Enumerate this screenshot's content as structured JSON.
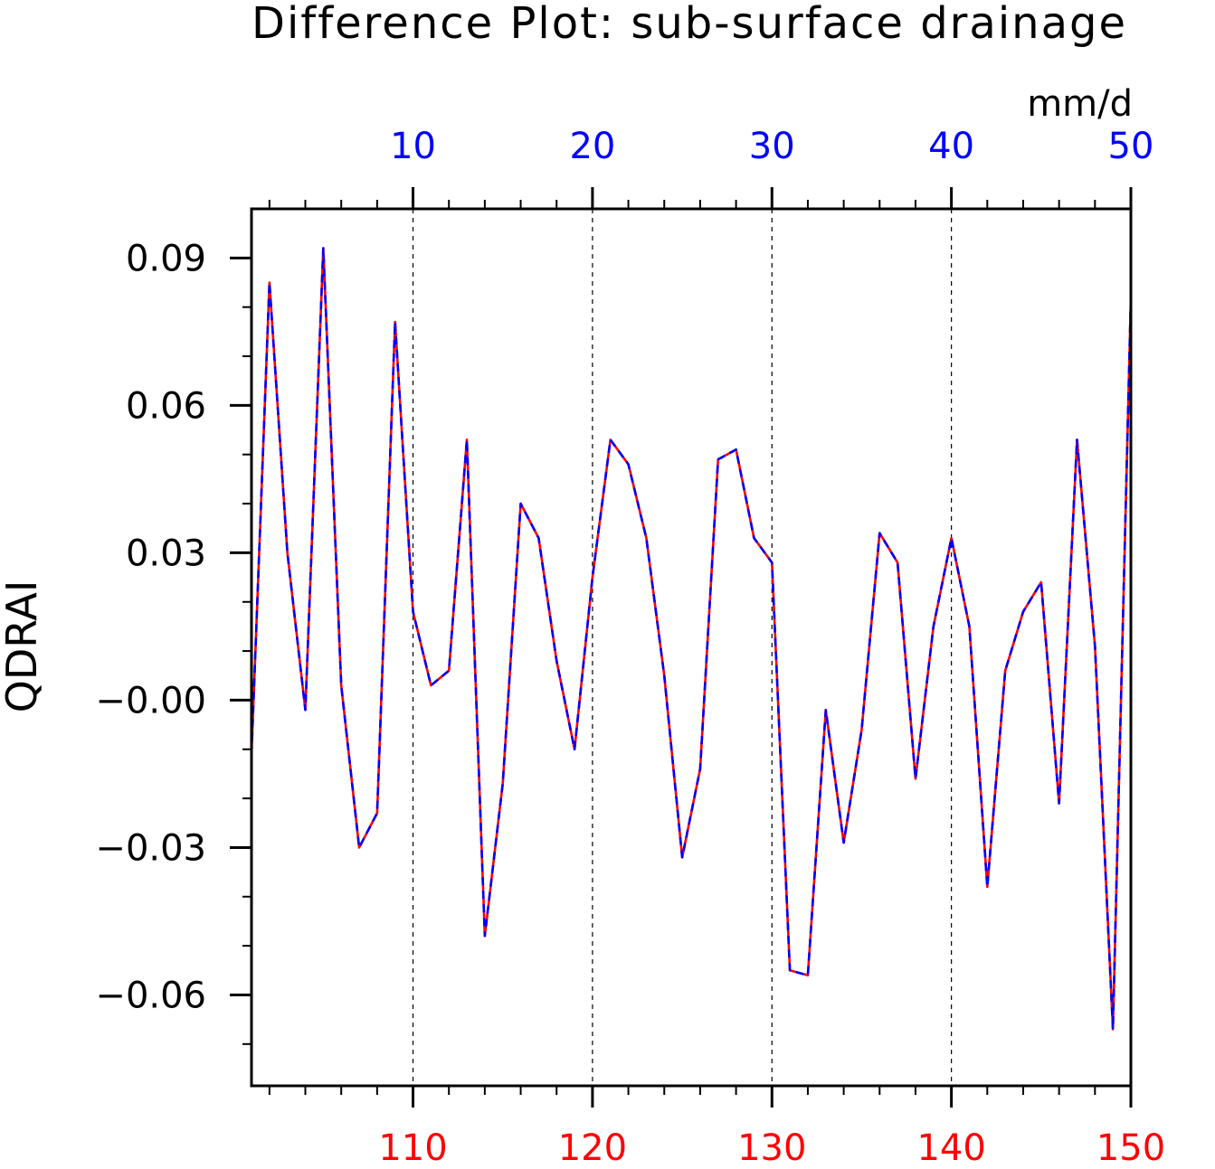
{
  "chart_data": {
    "type": "line",
    "title": "Difference Plot: sub-surface drainage",
    "ylabel": "QDRAI",
    "units": "mm/d",
    "grid": "vertical dashed",
    "colors": {
      "series_a": "#ff0000",
      "series_b": "#0000ff",
      "axis": "#000000",
      "bottom_ticks": "#ff0000",
      "top_ticks": "#0000ff"
    },
    "x_bottom": {
      "range": [
        101,
        150
      ],
      "ticks": [
        110,
        120,
        130,
        140,
        150
      ],
      "tick_labels": [
        "110",
        "120",
        "130",
        "140",
        "150"
      ]
    },
    "x_top": {
      "range": [
        1,
        50
      ],
      "ticks": [
        10,
        20,
        30,
        40,
        50
      ],
      "tick_labels": [
        "10",
        "20",
        "30",
        "40",
        "50"
      ]
    },
    "y": {
      "range": [
        -0.0785,
        0.1
      ],
      "ticks": [
        0.09,
        0.06,
        0.03,
        0.0,
        -0.03,
        -0.06
      ],
      "tick_labels": [
        "0.09",
        "0.06",
        "0.03",
        "−0.00",
        "−0.03",
        "−0.06"
      ]
    },
    "x": [
      101,
      102,
      103,
      104,
      105,
      106,
      107,
      108,
      109,
      110,
      111,
      112,
      113,
      114,
      115,
      116,
      117,
      118,
      119,
      120,
      121,
      122,
      123,
      124,
      125,
      126,
      127,
      128,
      129,
      130,
      131,
      132,
      133,
      134,
      135,
      136,
      137,
      138,
      139,
      140,
      141,
      142,
      143,
      144,
      145,
      146,
      147,
      148,
      149,
      150
    ],
    "series": [
      {
        "values": [
          -0.011,
          0.085,
          0.03,
          -0.002,
          0.092,
          0.003,
          -0.03,
          -0.023,
          0.077,
          0.018,
          0.003,
          0.006,
          0.053,
          -0.048,
          -0.017,
          0.04,
          0.033,
          0.008,
          -0.01,
          0.025,
          0.053,
          0.048,
          0.033,
          0.005,
          -0.032,
          -0.014,
          0.049,
          0.051,
          0.033,
          0.028,
          -0.055,
          -0.056,
          -0.002,
          -0.029,
          -0.006,
          0.034,
          0.028,
          -0.016,
          0.015,
          0.033,
          0.015,
          -0.038,
          0.006,
          0.018,
          0.024,
          -0.021,
          0.053,
          0.011,
          -0.067,
          0.082
        ]
      },
      {
        "values": [
          -0.011,
          0.085,
          0.03,
          -0.002,
          0.092,
          0.003,
          -0.03,
          -0.023,
          0.077,
          0.018,
          0.003,
          0.006,
          0.053,
          -0.048,
          -0.017,
          0.04,
          0.033,
          0.008,
          -0.01,
          0.025,
          0.053,
          0.048,
          0.033,
          0.005,
          -0.032,
          -0.014,
          0.049,
          0.051,
          0.033,
          0.028,
          -0.055,
          -0.056,
          -0.002,
          -0.029,
          -0.006,
          0.034,
          0.028,
          -0.016,
          0.015,
          0.033,
          0.015,
          -0.038,
          0.006,
          0.018,
          0.024,
          -0.021,
          0.053,
          0.011,
          -0.067,
          0.082
        ]
      }
    ]
  }
}
